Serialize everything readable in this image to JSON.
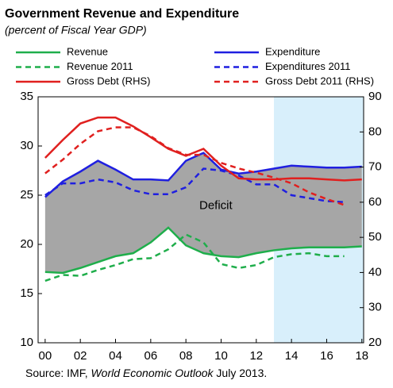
{
  "chart_data": {
    "type": "line",
    "title": "Government Revenue and Expenditure",
    "subtitle": "(percent of Fiscal Year GDP)",
    "source_prefix": "Source: IMF, ",
    "source_italic": "World Economic Outlook",
    "source_suffix": " July 2013.",
    "annotation": "Deficit",
    "x": [
      2000,
      2001,
      2002,
      2003,
      2004,
      2005,
      2006,
      2007,
      2008,
      2009,
      2010,
      2011,
      2012,
      2013,
      2014,
      2015,
      2016,
      2017,
      2018
    ],
    "xlim": [
      1999.6,
      2018.1
    ],
    "xticks": [
      {
        "value": 2000,
        "label": "00"
      },
      {
        "value": 2002,
        "label": "02"
      },
      {
        "value": 2004,
        "label": "04"
      },
      {
        "value": 2006,
        "label": "06"
      },
      {
        "value": 2008,
        "label": "08"
      },
      {
        "value": 2010,
        "label": "10"
      },
      {
        "value": 2012,
        "label": "12"
      },
      {
        "value": 2014,
        "label": "14"
      },
      {
        "value": 2016,
        "label": "16"
      },
      {
        "value": 2018,
        "label": "18"
      }
    ],
    "ylim": [
      10,
      35
    ],
    "yticks": [
      10,
      15,
      20,
      25,
      30,
      35
    ],
    "y2lim": [
      20,
      90
    ],
    "y2ticks": [
      20,
      30,
      40,
      50,
      60,
      70,
      80,
      90
    ],
    "projection_x": [
      2013,
      2018.1
    ],
    "projection_color": "#d8effb",
    "deficit_color": "#a6a6a6",
    "series": [
      {
        "name": "Revenue",
        "color": "#1fae4b",
        "dashed": false,
        "values": [
          17.2,
          17.1,
          17.6,
          18.2,
          18.8,
          19.1,
          20.2,
          21.7,
          19.9,
          19.1,
          18.8,
          18.7,
          19.1,
          19.4,
          19.6,
          19.7,
          19.7,
          19.7,
          19.8
        ]
      },
      {
        "name": "Expenditure",
        "color": "#1f1fe0",
        "dashed": false,
        "values": [
          24.8,
          26.4,
          27.4,
          28.5,
          27.6,
          26.6,
          26.6,
          26.5,
          28.5,
          29.3,
          27.6,
          27.2,
          27.4,
          27.7,
          28.0,
          27.9,
          27.8,
          27.8,
          27.9
        ]
      },
      {
        "name": "Revenue 2011",
        "color": "#1fae4b",
        "dashed": true,
        "values": [
          16.3,
          16.9,
          16.8,
          17.4,
          17.9,
          18.5,
          18.6,
          19.5,
          21.0,
          20.2,
          18.0,
          17.6,
          17.9,
          18.7,
          19.0,
          19.1,
          18.8,
          18.8,
          null
        ]
      },
      {
        "name": "Expenditures 2011",
        "color": "#1f1fe0",
        "dashed": true,
        "values": [
          25.0,
          26.2,
          26.2,
          26.6,
          26.3,
          25.5,
          25.1,
          25.1,
          25.8,
          27.7,
          27.5,
          27.0,
          26.1,
          26.1,
          25.0,
          24.7,
          24.4,
          24.3,
          null
        ]
      },
      {
        "name": "Gross Debt (RHS)",
        "color": "#e0201f",
        "dashed": false,
        "axis": "y2",
        "values": [
          72.6,
          77.7,
          82.4,
          84.1,
          84.1,
          81.6,
          78.5,
          75.2,
          73.2,
          75.2,
          70.4,
          66.8,
          66.5,
          66.5,
          66.8,
          66.8,
          66.5,
          66.2,
          66.5
        ]
      },
      {
        "name": "Gross Debt 2011 (RHS)",
        "color": "#e0201f",
        "dashed": true,
        "axis": "y2",
        "values": [
          68.2,
          72.1,
          76.6,
          80.2,
          81.3,
          81.3,
          78.8,
          75.4,
          73.5,
          73.5,
          71.2,
          69.6,
          68.4,
          67.0,
          65.4,
          62.8,
          60.9,
          59.2,
          null
        ]
      }
    ]
  }
}
